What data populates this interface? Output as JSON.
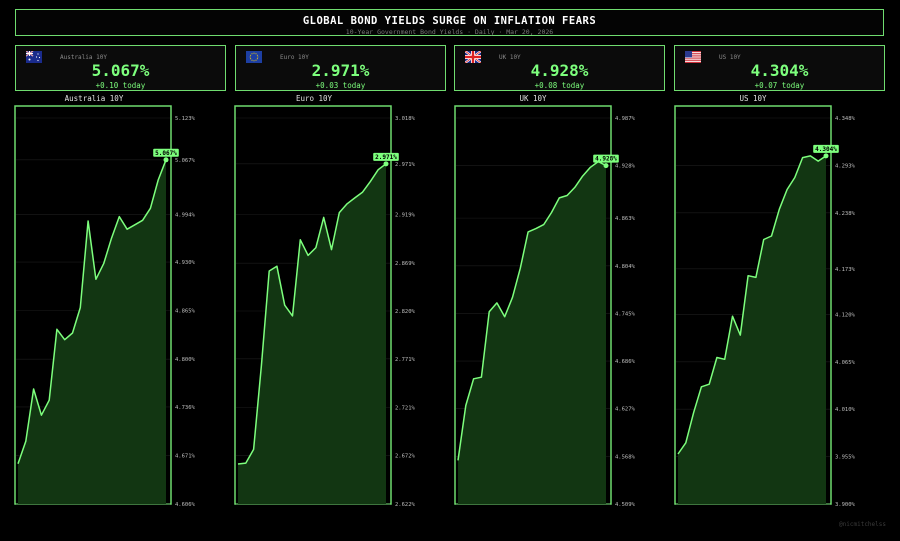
{
  "header": {
    "title": "GLOBAL BOND YIELDS SURGE ON INFLATION FEARS",
    "subtitle": "10-Year Government Bond Yields  ·  Daily  ·  Mar 20, 2026"
  },
  "cards": [
    {
      "name": "Australia 10Y",
      "value": "5.067%",
      "change": "+0.10 today",
      "flag": "australia-flag"
    },
    {
      "name": "Euro 10Y",
      "value": "2.971%",
      "change": "+0.03 today",
      "flag": "eu-flag"
    },
    {
      "name": "UK 10Y",
      "value": "4.928%",
      "change": "+0.08 today",
      "flag": "uk-flag"
    },
    {
      "name": "US 10Y",
      "value": "4.304%",
      "change": "+0.07 today",
      "flag": "us-flag"
    }
  ],
  "colors": {
    "line": "#7dff7d",
    "fill": "#123612",
    "border": "#6fdc6f",
    "grid": "#1c1c1c"
  },
  "watermark": "@nicmitchelss",
  "chart_data": [
    {
      "type": "area",
      "title": "Australia 10Y",
      "ylim": [
        4.606,
        5.123
      ],
      "yticks": [
        "5.123%",
        "5.067%",
        "4.994%",
        "4.930%",
        "4.865%",
        "4.800%",
        "4.736%",
        "4.671%",
        "4.606%"
      ],
      "ytick_values": [
        5.123,
        5.067,
        4.994,
        4.93,
        4.865,
        4.8,
        4.736,
        4.671,
        4.606
      ],
      "last_label": "5.067%",
      "values": [
        4.66,
        4.69,
        4.76,
        4.725,
        4.745,
        4.84,
        4.826,
        4.835,
        4.869,
        4.985,
        4.907,
        4.928,
        4.962,
        4.991,
        4.974,
        4.98,
        4.986,
        5.002,
        5.04,
        5.067
      ]
    },
    {
      "type": "area",
      "title": "Euro 10Y",
      "ylim": [
        2.622,
        3.018
      ],
      "yticks": [
        "3.018%",
        "2.971%",
        "2.919%",
        "2.869%",
        "2.820%",
        "2.771%",
        "2.721%",
        "2.672%",
        "2.622%"
      ],
      "ytick_values": [
        3.018,
        2.971,
        2.919,
        2.869,
        2.82,
        2.771,
        2.721,
        2.672,
        2.622
      ],
      "last_label": "2.971%",
      "values": [
        2.663,
        2.664,
        2.678,
        2.764,
        2.861,
        2.866,
        2.826,
        2.815,
        2.893,
        2.877,
        2.885,
        2.916,
        2.883,
        2.921,
        2.93,
        2.936,
        2.942,
        2.953,
        2.965,
        2.971
      ]
    },
    {
      "type": "area",
      "title": "UK 10Y",
      "ylim": [
        4.509,
        4.987
      ],
      "yticks": [
        "4.987%",
        "4.928%",
        "4.863%",
        "4.804%",
        "4.745%",
        "4.686%",
        "4.627%",
        "4.568%",
        "4.509%"
      ],
      "ytick_values": [
        4.987,
        4.928,
        4.863,
        4.804,
        4.745,
        4.686,
        4.627,
        4.568,
        4.509
      ],
      "last_label": "4.928%",
      "values": [
        4.563,
        4.631,
        4.664,
        4.666,
        4.747,
        4.758,
        4.741,
        4.765,
        4.801,
        4.846,
        4.85,
        4.855,
        4.87,
        4.888,
        4.891,
        4.901,
        4.915,
        4.926,
        4.933,
        4.928
      ]
    },
    {
      "type": "area",
      "title": "US 10Y",
      "ylim": [
        3.9,
        4.348
      ],
      "yticks": [
        "4.348%",
        "4.293%",
        "4.238%",
        "4.173%",
        "4.120%",
        "4.065%",
        "4.010%",
        "3.955%",
        "3.900%"
      ],
      "ytick_values": [
        4.348,
        4.293,
        4.238,
        4.173,
        4.12,
        4.065,
        4.01,
        3.955,
        3.9
      ],
      "last_label": "4.304%",
      "values": [
        3.958,
        3.971,
        4.006,
        4.036,
        4.039,
        4.07,
        4.068,
        4.118,
        4.096,
        4.165,
        4.163,
        4.207,
        4.211,
        4.242,
        4.265,
        4.279,
        4.302,
        4.304,
        4.298,
        4.304
      ]
    }
  ]
}
